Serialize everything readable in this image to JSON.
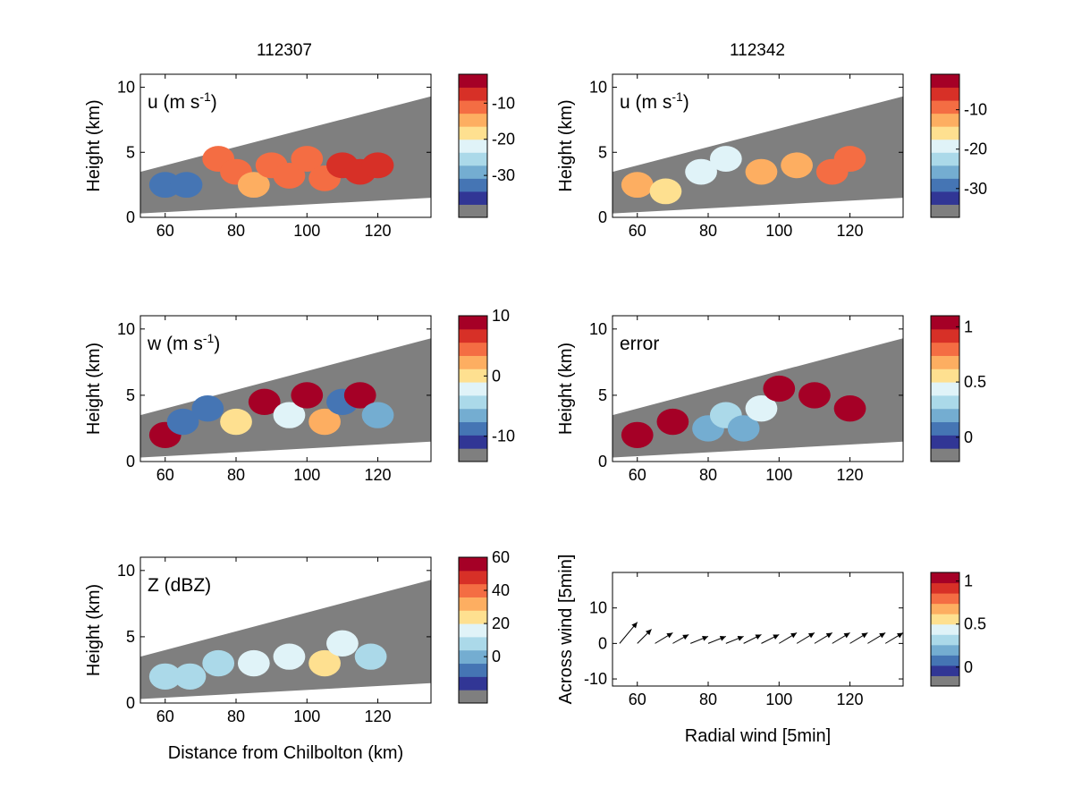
{
  "figure": {
    "column_titles": [
      "112307",
      "112342"
    ]
  },
  "colorbar_colors": [
    "#7f7f7f",
    "#313695",
    "#4575b4",
    "#74add1",
    "#abd9e9",
    "#e0f3f8",
    "#fee090",
    "#fdae61",
    "#f46d43",
    "#d73027",
    "#a50026"
  ],
  "chart_data": [
    {
      "type": "heatmap",
      "column_title": "112307",
      "panel_label_main": "u (m s",
      "panel_label_sup": "-1",
      "panel_label_tail": ")",
      "xlabel": "",
      "ylabel": "Height (km)",
      "xlim": [
        53,
        135
      ],
      "ylim": [
        0,
        11
      ],
      "xticks": [
        "60",
        "80",
        "100",
        "120"
      ],
      "yticks": [
        "0",
        "5",
        "10"
      ],
      "colorbar": {
        "ticks": [
          "-10",
          "-20",
          "-30"
        ],
        "tick_values": [
          -10,
          -20,
          -30
        ],
        "range": [
          -38,
          -2
        ]
      },
      "cells": [
        {
          "x": 75,
          "z": 4.5,
          "v": -12
        },
        {
          "x": 80,
          "z": 3.5,
          "v": -11
        },
        {
          "x": 85,
          "z": 2.5,
          "v": -13
        },
        {
          "x": 90,
          "z": 4.0,
          "v": -10
        },
        {
          "x": 95,
          "z": 3.2,
          "v": -12
        },
        {
          "x": 100,
          "z": 4.5,
          "v": -11
        },
        {
          "x": 105,
          "z": 3.0,
          "v": -12
        },
        {
          "x": 110,
          "z": 4.0,
          "v": -8
        },
        {
          "x": 115,
          "z": 3.5,
          "v": -7
        },
        {
          "x": 120,
          "z": 4.0,
          "v": -9
        },
        {
          "x": 60,
          "z": 2.5,
          "v": -33
        },
        {
          "x": 66,
          "z": 2.5,
          "v": -33
        }
      ]
    },
    {
      "type": "heatmap",
      "column_title": "112342",
      "panel_label_main": "u (m s",
      "panel_label_sup": "-1",
      "panel_label_tail": ")",
      "xlabel": "",
      "ylabel": "Height (km)",
      "xlim": [
        53,
        135
      ],
      "ylim": [
        0,
        11
      ],
      "xticks": [
        "60",
        "80",
        "100",
        "120"
      ],
      "yticks": [
        "0",
        "5",
        "10"
      ],
      "colorbar": {
        "ticks": [
          "-10",
          "-20",
          "-30"
        ],
        "tick_values": [
          -10,
          -20,
          -30
        ],
        "range": [
          -34,
          -1
        ]
      },
      "cells": [
        {
          "x": 60,
          "z": 2.5,
          "v": -12
        },
        {
          "x": 68,
          "z": 2.0,
          "v": -15
        },
        {
          "x": 78,
          "z": 3.5,
          "v": -18
        },
        {
          "x": 85,
          "z": 4.5,
          "v": -18
        },
        {
          "x": 95,
          "z": 3.5,
          "v": -12
        },
        {
          "x": 105,
          "z": 4.0,
          "v": -12
        },
        {
          "x": 115,
          "z": 3.5,
          "v": -10
        },
        {
          "x": 120,
          "z": 4.5,
          "v": -10
        }
      ]
    },
    {
      "type": "heatmap",
      "panel_label_main": "w (m s",
      "panel_label_sup": "-1",
      "panel_label_tail": ")",
      "xlabel": "",
      "ylabel": "Height (km)",
      "xlim": [
        53,
        135
      ],
      "ylim": [
        0,
        11
      ],
      "xticks": [
        "60",
        "80",
        "100",
        "120"
      ],
      "yticks": [
        "0",
        "5",
        "10"
      ],
      "colorbar": {
        "ticks": [
          "10",
          "0",
          "-10"
        ],
        "tick_values": [
          10,
          0,
          -10
        ],
        "range": [
          -12,
          10
        ]
      },
      "cells": [
        {
          "x": 60,
          "z": 2.0,
          "v": 8
        },
        {
          "x": 65,
          "z": 3.0,
          "v": -9
        },
        {
          "x": 72,
          "z": 4.0,
          "v": -8
        },
        {
          "x": 80,
          "z": 3.0,
          "v": 1
        },
        {
          "x": 88,
          "z": 4.5,
          "v": 9
        },
        {
          "x": 95,
          "z": 3.5,
          "v": -3
        },
        {
          "x": 100,
          "z": 5.0,
          "v": 9
        },
        {
          "x": 105,
          "z": 3.0,
          "v": 2
        },
        {
          "x": 110,
          "z": 4.5,
          "v": -9
        },
        {
          "x": 115,
          "z": 5.0,
          "v": 8
        },
        {
          "x": 120,
          "z": 3.5,
          "v": -6
        }
      ]
    },
    {
      "type": "heatmap",
      "panel_label_main": "error",
      "panel_label_sup": "",
      "panel_label_tail": "",
      "xlabel": "",
      "ylabel": "Height (km)",
      "xlim": [
        53,
        135
      ],
      "ylim": [
        0,
        11
      ],
      "xticks": [
        "60",
        "80",
        "100",
        "120"
      ],
      "yticks": [
        "0",
        "5",
        "10"
      ],
      "colorbar": {
        "ticks": [
          "1",
          "0.5",
          "0"
        ],
        "tick_values": [
          1,
          0.5,
          0
        ],
        "range": [
          -0.1,
          1.1
        ]
      },
      "cells": [
        {
          "x": 60,
          "z": 2.0,
          "v": 1.0
        },
        {
          "x": 70,
          "z": 3.0,
          "v": 1.0
        },
        {
          "x": 80,
          "z": 2.5,
          "v": 0.2
        },
        {
          "x": 85,
          "z": 3.5,
          "v": 0.3
        },
        {
          "x": 90,
          "z": 2.5,
          "v": 0.2
        },
        {
          "x": 95,
          "z": 4.0,
          "v": 0.5
        },
        {
          "x": 100,
          "z": 5.5,
          "v": 1.0
        },
        {
          "x": 110,
          "z": 5.0,
          "v": 1.0
        },
        {
          "x": 120,
          "z": 4.0,
          "v": 1.0
        }
      ]
    },
    {
      "type": "heatmap",
      "panel_label_main": "Z (dBZ)",
      "panel_label_sup": "",
      "panel_label_tail": "",
      "xlabel": "Distance from Chilbolton (km)",
      "ylabel": "Height (km)",
      "xlim": [
        53,
        135
      ],
      "ylim": [
        0,
        11
      ],
      "xticks": [
        "60",
        "80",
        "100",
        "120"
      ],
      "yticks": [
        "0",
        "5",
        "10"
      ],
      "colorbar": {
        "ticks": [
          "60",
          "40",
          "20",
          "0"
        ],
        "tick_values": [
          60,
          40,
          20,
          0
        ],
        "range": [
          -20,
          60
        ]
      },
      "cells": [
        {
          "x": 60,
          "z": 2.0,
          "v": 5
        },
        {
          "x": 67,
          "z": 2.0,
          "v": 5
        },
        {
          "x": 75,
          "z": 3.0,
          "v": 8
        },
        {
          "x": 85,
          "z": 3.0,
          "v": 18
        },
        {
          "x": 95,
          "z": 3.5,
          "v": 14
        },
        {
          "x": 105,
          "z": 3.0,
          "v": 25
        },
        {
          "x": 110,
          "z": 4.5,
          "v": 12
        },
        {
          "x": 118,
          "z": 3.5,
          "v": 10
        }
      ]
    },
    {
      "type": "scatter",
      "panel_label_main": "",
      "xlabel": "Radial wind [5min]",
      "ylabel": "Across wind [5min]",
      "xlim": [
        53,
        135
      ],
      "ylim": [
        -12,
        20
      ],
      "xticks": [
        "60",
        "80",
        "100",
        "120"
      ],
      "yticks": [
        "-10",
        "0",
        "10"
      ],
      "colorbar": {
        "ticks": [
          "1",
          "0.5",
          "0"
        ],
        "tick_values": [
          1,
          0.5,
          0
        ],
        "range": [
          -0.1,
          1.1
        ]
      },
      "arrows": [
        {
          "x": 55,
          "y": 0,
          "dx": 5,
          "dy": 6
        },
        {
          "x": 60,
          "y": 0,
          "dx": 4,
          "dy": 4
        },
        {
          "x": 65,
          "y": 0,
          "dx": 5,
          "dy": 3
        },
        {
          "x": 70,
          "y": 0,
          "dx": 4.5,
          "dy": 2.5
        },
        {
          "x": 75,
          "y": 0,
          "dx": 5,
          "dy": 2
        },
        {
          "x": 80,
          "y": 0,
          "dx": 5,
          "dy": 2
        },
        {
          "x": 85,
          "y": 0,
          "dx": 5,
          "dy": 2
        },
        {
          "x": 90,
          "y": 0,
          "dx": 5,
          "dy": 2.5
        },
        {
          "x": 95,
          "y": 0,
          "dx": 5,
          "dy": 2.5
        },
        {
          "x": 100,
          "y": 0,
          "dx": 5,
          "dy": 3
        },
        {
          "x": 105,
          "y": 0,
          "dx": 5,
          "dy": 3
        },
        {
          "x": 110,
          "y": 0,
          "dx": 5,
          "dy": 3
        },
        {
          "x": 115,
          "y": 0,
          "dx": 5,
          "dy": 3
        },
        {
          "x": 120,
          "y": 0,
          "dx": 5,
          "dy": 3
        },
        {
          "x": 125,
          "y": 0,
          "dx": 5,
          "dy": 3
        },
        {
          "x": 130,
          "y": 0,
          "dx": 5,
          "dy": 3
        }
      ]
    }
  ]
}
